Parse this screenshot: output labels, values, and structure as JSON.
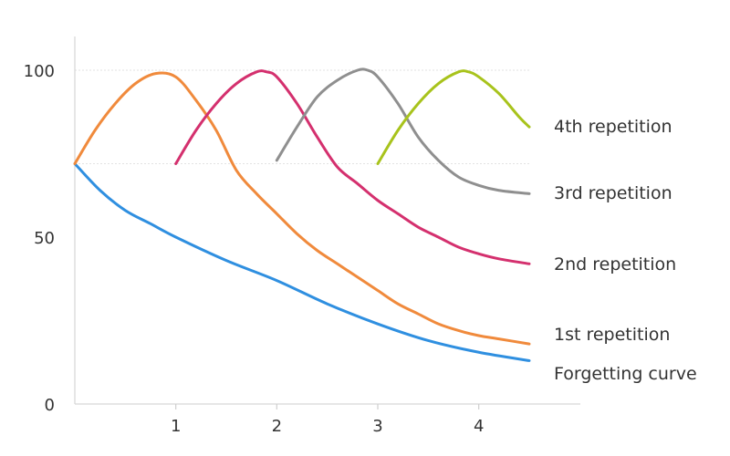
{
  "chart_data": {
    "type": "line",
    "title": "",
    "xlabel": "",
    "ylabel": "",
    "xlim": [
      0,
      4.5
    ],
    "ylim": [
      0,
      100
    ],
    "x_ticks": [
      1,
      2,
      3,
      4
    ],
    "x_tick_labels": [
      "1",
      "2",
      "3",
      "4"
    ],
    "y_ticks": [
      0,
      50,
      100
    ],
    "y_tick_labels": [
      "0",
      "50",
      "100"
    ],
    "gridlines_y": [
      100,
      72
    ],
    "legend_placement": "right, inline with line ends",
    "series": [
      {
        "name": "Forgetting curve",
        "color": "#2f8fe0",
        "x": [
          0,
          0.25,
          0.5,
          0.75,
          1,
          1.5,
          2,
          2.5,
          3,
          3.5,
          4,
          4.5
        ],
        "y": [
          72,
          64,
          58,
          54,
          50,
          43,
          37,
          30,
          24,
          19,
          15.5,
          13
        ]
      },
      {
        "name": "1st repetition",
        "color": "#f08a3c",
        "x": [
          0,
          0.2,
          0.4,
          0.6,
          0.8,
          1.0,
          1.2,
          1.4,
          1.6,
          1.8,
          2.0,
          2.2,
          2.4,
          2.6,
          2.8,
          3.0,
          3.2,
          3.4,
          3.6,
          3.8,
          4.0,
          4.2,
          4.5
        ],
        "y": [
          72,
          82,
          90,
          96,
          99,
          98,
          91,
          82,
          70,
          63,
          57,
          51,
          46,
          42,
          38,
          34,
          30,
          27,
          24,
          22,
          20.5,
          19.5,
          18
        ]
      },
      {
        "name": "2nd repetition",
        "color": "#d4306e",
        "x": [
          1.0,
          1.2,
          1.4,
          1.6,
          1.8,
          1.9,
          2.0,
          2.2,
          2.4,
          2.6,
          2.8,
          3.0,
          3.2,
          3.4,
          3.6,
          3.8,
          4.0,
          4.2,
          4.5
        ],
        "y": [
          72,
          82,
          90,
          96,
          99.5,
          99.5,
          98,
          90,
          80,
          71,
          66,
          61,
          57,
          53,
          50,
          47,
          45,
          43.5,
          42
        ]
      },
      {
        "name": "3rd repetition",
        "color": "#8f8f8f",
        "x": [
          2.0,
          2.2,
          2.4,
          2.6,
          2.8,
          2.9,
          3.0,
          3.2,
          3.4,
          3.6,
          3.8,
          4.0,
          4.2,
          4.5
        ],
        "y": [
          73,
          83,
          92,
          97,
          100,
          100,
          98,
          90,
          80,
          73,
          68,
          65.5,
          64,
          63
        ]
      },
      {
        "name": "4th repetition",
        "color": "#a8c31c",
        "x": [
          3.0,
          3.2,
          3.4,
          3.6,
          3.8,
          3.9,
          4.0,
          4.2,
          4.4,
          4.5
        ],
        "y": [
          72,
          82,
          90,
          96,
          99.5,
          99.5,
          98,
          93,
          86,
          83
        ]
      }
    ],
    "legend": [
      {
        "label": "4th repetition",
        "series": "4th repetition"
      },
      {
        "label": "3rd repetition",
        "series": "3rd repetition"
      },
      {
        "label": "2nd repetition",
        "series": "2nd repetition"
      },
      {
        "label": "1st repetition",
        "series": "1st repetition"
      },
      {
        "label": "Forgetting curve",
        "series": "Forgetting curve"
      }
    ]
  }
}
